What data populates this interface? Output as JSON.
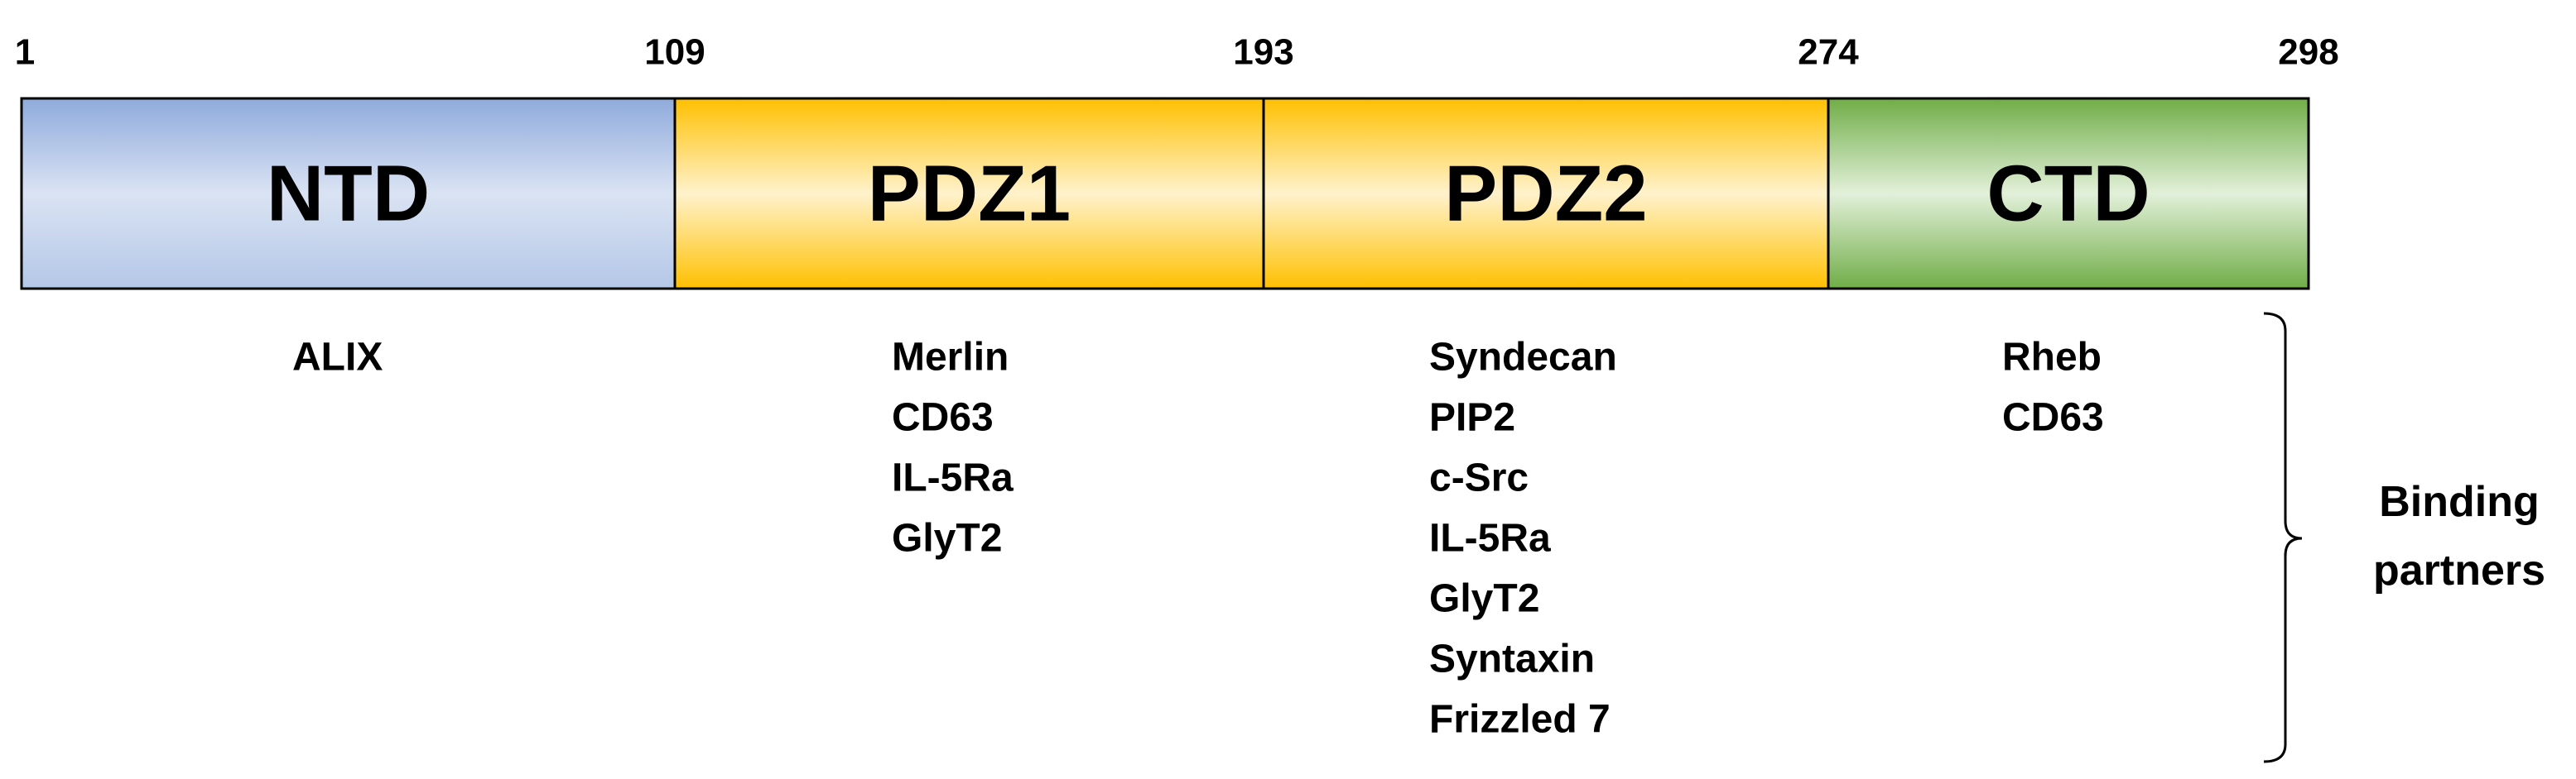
{
  "positions": [
    1,
    109,
    193,
    274,
    298
  ],
  "domains": [
    {
      "label": "NTD",
      "partners": [
        "ALIX"
      ]
    },
    {
      "label": "PDZ1",
      "partners": [
        "Merlin",
        "CD63",
        "IL-5Ra",
        "GlyT2"
      ]
    },
    {
      "label": "PDZ2",
      "partners": [
        "Syndecan",
        "PIP2",
        "c-Src",
        "IL-5Ra",
        "GlyT2",
        "Syntaxin",
        "Frizzled 7"
      ]
    },
    {
      "label": "CTD",
      "partners": [
        "Rheb",
        "CD63"
      ]
    }
  ],
  "bracket_label": "Binding partners"
}
